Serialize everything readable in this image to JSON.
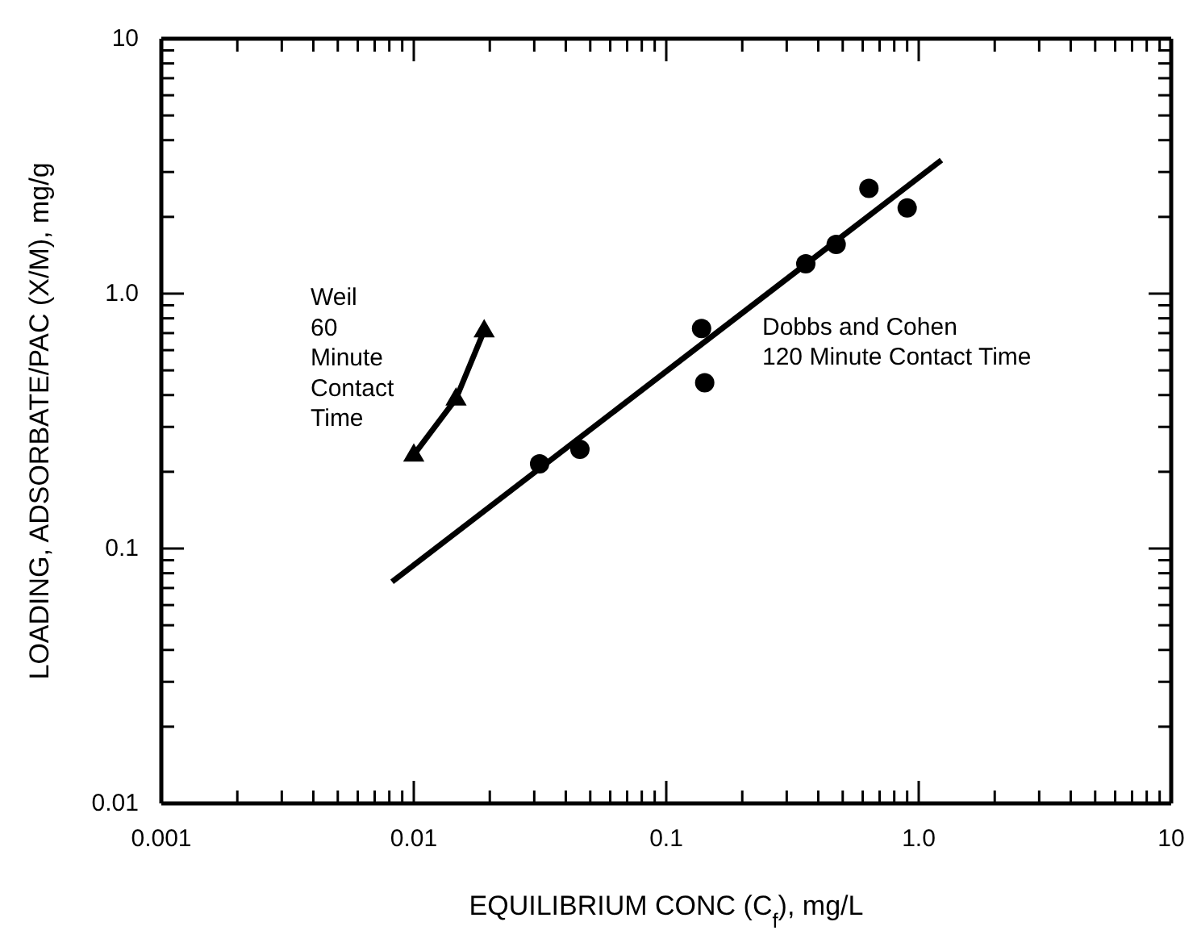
{
  "chart_data": {
    "type": "scatter",
    "xlabel": "EQUILIBRIUM CONC (C$_{f}$), mg/L",
    "ylabel": "LOADING, ADSORBATE/PAC (X/M), mg/g",
    "log": "xy",
    "grid": false,
    "xlim": [
      0.001,
      10
    ],
    "ylim": [
      0.01,
      10
    ],
    "xticks": [
      0.001,
      {
        "value": 0.002,
        "label": null
      },
      {
        "value": 0.003,
        "label": null
      },
      {
        "value": 0.004,
        "label": null
      },
      {
        "value": 0.005,
        "label": null
      },
      {
        "value": 0.006,
        "label": null
      },
      {
        "value": 0.007,
        "label": null
      },
      {
        "value": 0.008,
        "label": null
      },
      {
        "value": 0.009,
        "label": null
      },
      0.01,
      {
        "value": 0.02,
        "label": null
      },
      {
        "value": 0.03,
        "label": null
      },
      {
        "value": 0.04,
        "label": null
      },
      {
        "value": 0.05,
        "label": null
      },
      {
        "value": 0.06,
        "label": null
      },
      {
        "value": 0.07,
        "label": null
      },
      {
        "value": 0.08,
        "label": null
      },
      {
        "value": 0.09,
        "label": null
      },
      0.1,
      {
        "value": 0.2,
        "label": null
      },
      {
        "value": 0.3,
        "label": null
      },
      {
        "value": 0.4,
        "label": null
      },
      {
        "value": 0.5,
        "label": null
      },
      {
        "value": 0.6,
        "label": null
      },
      {
        "value": 0.7,
        "label": null
      },
      {
        "value": 0.8,
        "label": null
      },
      {
        "value": 0.9,
        "label": null
      },
      {
        "value": 1,
        "label": "1.0"
      },
      {
        "value": 2,
        "label": null
      },
      {
        "value": 3,
        "label": null
      },
      {
        "value": 4,
        "label": null
      },
      {
        "value": 5,
        "label": null
      },
      {
        "value": 6,
        "label": null
      },
      {
        "value": 7,
        "label": null
      },
      {
        "value": 8,
        "label": null
      },
      {
        "value": 9,
        "label": null
      },
      10
    ],
    "yticks": [
      0.01,
      {
        "value": 0.02,
        "label": null
      },
      {
        "value": 0.03,
        "label": null
      },
      {
        "value": 0.04,
        "label": null
      },
      {
        "value": 0.05,
        "label": null
      },
      {
        "value": 0.06,
        "label": null
      },
      {
        "value": 0.07,
        "label": null
      },
      {
        "value": 0.08,
        "label": null
      },
      {
        "value": 0.09,
        "label": null
      },
      0.1,
      {
        "value": 0.2,
        "label": null
      },
      {
        "value": 0.3,
        "label": null
      },
      {
        "value": 0.4,
        "label": null
      },
      {
        "value": 0.5,
        "label": null
      },
      {
        "value": 0.6,
        "label": null
      },
      {
        "value": 0.7,
        "label": null
      },
      {
        "value": 0.8,
        "label": null
      },
      {
        "value": 0.9,
        "label": null
      },
      {
        "value": 1,
        "label": "1.0"
      },
      {
        "value": 2,
        "label": null
      },
      {
        "value": 3,
        "label": null
      },
      {
        "value": 4,
        "label": null
      },
      {
        "value": 5,
        "label": null
      },
      {
        "value": 6,
        "label": null
      },
      {
        "value": 7,
        "label": null
      },
      {
        "value": 8,
        "label": null
      },
      {
        "value": 9,
        "label": null
      },
      10
    ],
    "series": [
      {
        "type": "line",
        "marker": "triangle",
        "color": "#000000",
        "x": [
          0.01,
          0.0147,
          0.019
        ],
        "values": [
          0.233,
          0.387,
          0.716
        ]
      },
      {
        "marker": "circle",
        "color": "#000000",
        "x": [
          0.0315,
          0.0455,
          0.138,
          0.142,
          0.357,
          0.471,
          0.635,
          0.9
        ],
        "values": [
          0.215,
          0.245,
          0.73,
          0.447,
          1.31,
          1.56,
          2.59,
          2.17
        ]
      },
      {
        "type": "line",
        "marker": "none",
        "color": "#000000",
        "x": [
          0.0082,
          1.23
        ],
        "values": [
          0.074,
          3.34
        ]
      }
    ],
    "annotations": [
      "Weil\n60\nMinute\nContact\nTime",
      "Dobbs and Cohen\n120 Minute Contact Time"
    ]
  }
}
